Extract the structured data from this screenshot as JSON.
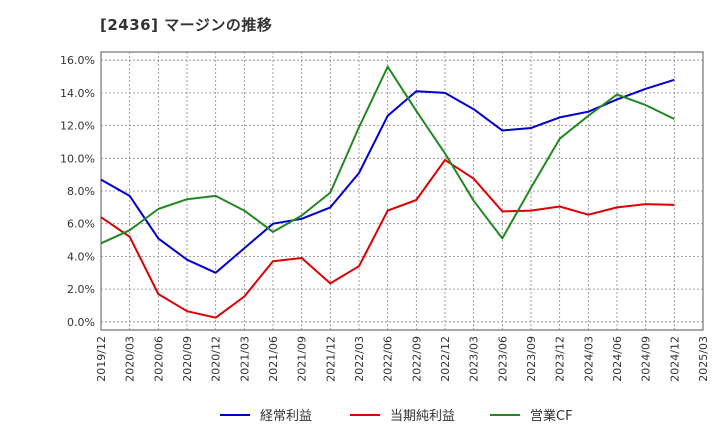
{
  "chart_data": {
    "type": "line",
    "title": "[2436]  マージンの推移",
    "x": [
      "2019/12",
      "2020/03",
      "2020/06",
      "2020/09",
      "2020/12",
      "2021/03",
      "2021/06",
      "2021/09",
      "2021/12",
      "2022/03",
      "2022/06",
      "2022/09",
      "2022/12",
      "2023/03",
      "2023/06",
      "2023/09",
      "2023/12",
      "2024/03",
      "2024/06",
      "2024/09",
      "2024/12",
      "2025/03"
    ],
    "y_ticks": [
      "0.0%",
      "2.0%",
      "4.0%",
      "6.0%",
      "8.0%",
      "10.0%",
      "12.0%",
      "14.0%",
      "16.0%"
    ],
    "ylim": [
      -0.5,
      16.5
    ],
    "grid": true,
    "legend_position": "bottom",
    "series": [
      {
        "name": "経常利益",
        "color": "#0000cc",
        "values": [
          8.7,
          7.7,
          5.1,
          3.8,
          3.0,
          4.5,
          6.0,
          6.3,
          7.0,
          9.1,
          12.6,
          14.1,
          14.0,
          13.0,
          11.7,
          11.85,
          12.5,
          12.85,
          13.6,
          14.25,
          14.8,
          null
        ]
      },
      {
        "name": "当期純利益",
        "color": "#dd0000",
        "values": [
          6.4,
          5.2,
          1.7,
          0.65,
          0.25,
          1.55,
          3.7,
          3.9,
          2.35,
          3.4,
          6.8,
          7.45,
          9.9,
          8.75,
          6.75,
          6.8,
          7.05,
          6.55,
          7.0,
          7.2,
          7.15,
          null
        ]
      },
      {
        "name": "営業CF",
        "color": "#228822",
        "values": [
          4.8,
          5.6,
          6.9,
          7.5,
          7.7,
          6.8,
          5.5,
          6.5,
          7.9,
          11.9,
          15.6,
          12.9,
          10.3,
          7.4,
          5.1,
          8.2,
          11.2,
          12.6,
          13.9,
          13.25,
          12.4,
          null
        ]
      }
    ]
  }
}
